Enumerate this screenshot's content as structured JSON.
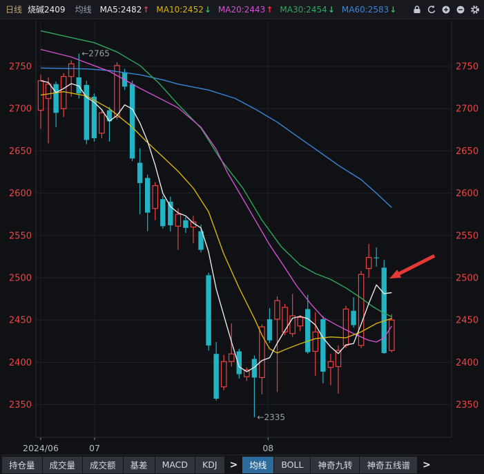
{
  "header": {
    "period": "日线",
    "symbol": "烧碱2409",
    "overlay_label": "均线",
    "ma_readouts": [
      {
        "label": "MA5:2482",
        "trend": "up",
        "color": "#e8eaed"
      },
      {
        "label": "MA10:2452",
        "trend": "down",
        "color": "#d9b310"
      },
      {
        "label": "MA20:2443",
        "trend": "up",
        "color": "#d54fd0"
      },
      {
        "label": "MA30:2454",
        "trend": "down",
        "color": "#2fa85c"
      },
      {
        "label": "MA60:2583",
        "trend": "down",
        "color": "#3a87d7"
      }
    ],
    "icons": [
      "lock",
      "undo",
      "zoom-in",
      "zoom-out",
      "settings"
    ]
  },
  "colors": {
    "background": "#0f1115",
    "grid": "#20232a",
    "plot_border": "#2a2d34",
    "axis_text_red": "#ef4444",
    "axis_text_gray": "#b7bcc4",
    "candle_up": "#ef4141",
    "candle_down": "#23b3c2",
    "ma5": "#e8e8e8",
    "ma10": "#d9b310",
    "ma20": "#d54fd0",
    "ma30": "#2fa85c",
    "ma60": "#3a87d7",
    "annotation_text": "#9aa0a2",
    "arrow_annotation": "#e53935"
  },
  "chart_data": {
    "type": "candlestick",
    "title": "烧碱2409 日线",
    "y_axis": {
      "ticks": [
        2750,
        2700,
        2650,
        2600,
        2550,
        2500,
        2450,
        2400,
        2350
      ],
      "sides": "both"
    },
    "x_axis": {
      "ticks": [
        {
          "label": "2024/06",
          "index": 0
        },
        {
          "label": "07",
          "index": 7.06
        },
        {
          "label": "08",
          "index": 29.8
        }
      ]
    },
    "candles_ohlc": [
      [
        2698,
        2740,
        2676,
        2733
      ],
      [
        2712,
        2737,
        2659,
        2729
      ],
      [
        2729,
        2732,
        2678,
        2695
      ],
      [
        2700,
        2742,
        2690,
        2738
      ],
      [
        2738,
        2757,
        2714,
        2753
      ],
      [
        2737,
        2765,
        2712,
        2718
      ],
      [
        2728,
        2733,
        2658,
        2663
      ],
      [
        2714,
        2718,
        2661,
        2665
      ],
      [
        2671,
        2698,
        2665,
        2695
      ],
      [
        2698,
        2702,
        2661,
        2685
      ],
      [
        2690,
        2755,
        2687,
        2751
      ],
      [
        2743,
        2747,
        2722,
        2726
      ],
      [
        2729,
        2733,
        2638,
        2641
      ],
      [
        2636,
        2653,
        2575,
        2612
      ],
      [
        2618,
        2622,
        2555,
        2577
      ],
      [
        2582,
        2613,
        2568,
        2609
      ],
      [
        2593,
        2597,
        2558,
        2561
      ],
      [
        2590,
        2596,
        2555,
        2562
      ],
      [
        2561,
        2582,
        2533,
        2575
      ],
      [
        2568,
        2572,
        2553,
        2559
      ],
      [
        2560,
        2573,
        2541,
        2566
      ],
      [
        2555,
        2563,
        2530,
        2533
      ],
      [
        2503,
        2506,
        2414,
        2420
      ],
      [
        2410,
        2424,
        2355,
        2357
      ],
      [
        2371,
        2409,
        2367,
        2401
      ],
      [
        2401,
        2446,
        2395,
        2410
      ],
      [
        2413,
        2416,
        2381,
        2386
      ],
      [
        2383,
        2394,
        2378,
        2391
      ],
      [
        2404,
        2408,
        2335,
        2382
      ],
      [
        2382,
        2445,
        2362,
        2442
      ],
      [
        2451,
        2464,
        2423,
        2426
      ],
      [
        2451,
        2478,
        2365,
        2473
      ],
      [
        2436,
        2469,
        2432,
        2465
      ],
      [
        2434,
        2481,
        2430,
        2455
      ],
      [
        2443,
        2456,
        2437,
        2453
      ],
      [
        2463,
        2480,
        2410,
        2412
      ],
      [
        2413,
        2459,
        2384,
        2436
      ],
      [
        2451,
        2455,
        2375,
        2389
      ],
      [
        2394,
        2410,
        2373,
        2401
      ],
      [
        2395,
        2420,
        2363,
        2414
      ],
      [
        2420,
        2467,
        2417,
        2463
      ],
      [
        2461,
        2477,
        2441,
        2444
      ],
      [
        2420,
        2508,
        2417,
        2504
      ],
      [
        2511,
        2540,
        2500,
        2524
      ],
      [
        2524,
        2536,
        2513,
        2523
      ],
      [
        2512,
        2521,
        2410,
        2411
      ],
      [
        2414,
        2457,
        2412,
        2450
      ]
    ],
    "moving_average_lines": {
      "ma5": {
        "name": "MA5",
        "window": 5,
        "computed_from_closes": true,
        "last_value": 2482
      },
      "ma10": {
        "name": "MA10",
        "last_value": 2452,
        "anchors": [
          [
            0,
            2716
          ],
          [
            3,
            2720
          ],
          [
            6,
            2715
          ],
          [
            9,
            2700
          ],
          [
            12,
            2678
          ],
          [
            14,
            2660
          ],
          [
            16,
            2643
          ],
          [
            18,
            2626
          ],
          [
            20,
            2606
          ],
          [
            22,
            2578
          ],
          [
            24,
            2528
          ],
          [
            26,
            2488
          ],
          [
            28,
            2452
          ],
          [
            29,
            2432
          ],
          [
            30,
            2416
          ],
          [
            31,
            2411
          ],
          [
            32,
            2415
          ],
          [
            34,
            2422
          ],
          [
            36,
            2428
          ],
          [
            38,
            2430
          ],
          [
            40,
            2429
          ],
          [
            42,
            2436
          ],
          [
            44,
            2446
          ],
          [
            45,
            2449
          ],
          [
            46,
            2452
          ]
        ]
      },
      "ma20": {
        "name": "MA20",
        "last_value": 2443,
        "anchors": [
          [
            0,
            2770
          ],
          [
            4,
            2761
          ],
          [
            9,
            2744
          ],
          [
            13,
            2724
          ],
          [
            18,
            2701
          ],
          [
            21,
            2678
          ],
          [
            23,
            2652
          ],
          [
            24.5,
            2624
          ],
          [
            26,
            2601
          ],
          [
            28,
            2570
          ],
          [
            30,
            2539
          ],
          [
            32,
            2512
          ],
          [
            33.5,
            2491
          ],
          [
            35.5,
            2468
          ],
          [
            37,
            2453
          ],
          [
            39,
            2443
          ],
          [
            41,
            2434
          ],
          [
            43,
            2426
          ],
          [
            44,
            2424
          ],
          [
            45,
            2429
          ],
          [
            46,
            2443
          ]
        ]
      },
      "ma30": {
        "name": "MA30",
        "last_value": 2454,
        "anchors": [
          [
            0,
            2792
          ],
          [
            4,
            2784
          ],
          [
            7,
            2778
          ],
          [
            10,
            2767
          ],
          [
            13,
            2751
          ],
          [
            15.5,
            2730
          ],
          [
            18,
            2705
          ],
          [
            21,
            2677
          ],
          [
            23.5,
            2641
          ],
          [
            26.5,
            2606
          ],
          [
            29,
            2568
          ],
          [
            31.5,
            2537
          ],
          [
            34,
            2515
          ],
          [
            36,
            2505
          ],
          [
            38,
            2498
          ],
          [
            40,
            2488
          ],
          [
            42,
            2476
          ],
          [
            43.5,
            2466
          ],
          [
            45,
            2458
          ],
          [
            46,
            2454
          ]
        ]
      },
      "ma60": {
        "name": "MA60",
        "last_value": 2583,
        "anchors": [
          [
            0,
            2748
          ],
          [
            6,
            2747
          ],
          [
            9,
            2745
          ],
          [
            13,
            2740
          ],
          [
            16,
            2734
          ],
          [
            18,
            2729
          ],
          [
            22,
            2722
          ],
          [
            25.5,
            2712
          ],
          [
            28,
            2700
          ],
          [
            31,
            2684
          ],
          [
            33.5,
            2668
          ],
          [
            36.5,
            2649
          ],
          [
            39,
            2633
          ],
          [
            42,
            2616
          ],
          [
            44,
            2600
          ],
          [
            46,
            2583
          ]
        ]
      }
    },
    "annotations": {
      "high_label": {
        "text": "←2765",
        "index": 5,
        "value": 2765
      },
      "low_label": {
        "text": "←2335",
        "index": 28,
        "value": 2335
      },
      "red_arrow": {
        "tail": {
          "index": 51.6,
          "value": 2526
        },
        "tip": {
          "index": 45.7,
          "value": 2499
        }
      }
    }
  },
  "tabs": {
    "left_group": [
      "持仓量",
      "成交量",
      "成交额",
      "基差",
      "MACD",
      "KDJ"
    ],
    "more_left": ">",
    "right_group": [
      "均线",
      "BOLL",
      "神奇九转",
      "神奇五线谱"
    ],
    "selected": "均线",
    "more_right": ">"
  }
}
